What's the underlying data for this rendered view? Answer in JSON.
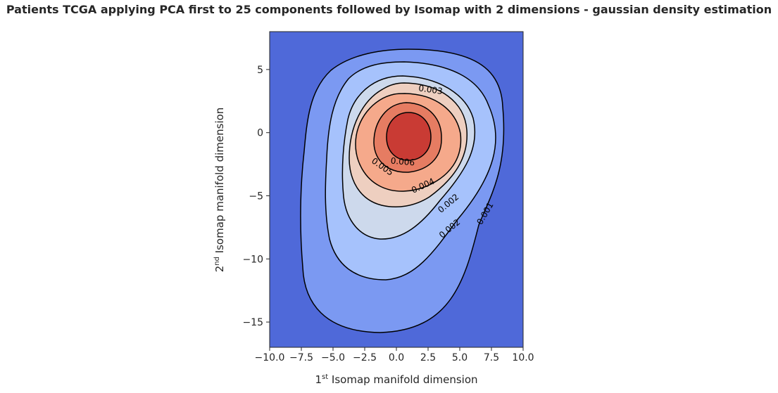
{
  "chart_data": {
    "type": "contour",
    "title": "Patients TCGA applying PCA first to 25 components followed by Isomap with 2 dimensions - gaussian density estimation",
    "xlabel": {
      "ordinal": "1",
      "suffix": "st",
      "text": " Isomap manifold dimension"
    },
    "ylabel": {
      "ordinal": "2",
      "suffix": "nd",
      "text": " Isomap manifold dimension"
    },
    "xlim": [
      -10,
      10
    ],
    "ylim": [
      -17,
      8
    ],
    "xticks": [
      -10,
      -7.5,
      -5,
      -2.5,
      0,
      2.5,
      5,
      7.5,
      10
    ],
    "xtick_labels": [
      "−10.0",
      "−7.5",
      "−5.0",
      "−2.5",
      "0.0",
      "2.5",
      "5.0",
      "7.5",
      "10.0"
    ],
    "yticks": [
      5,
      0,
      -5,
      -10,
      -15
    ],
    "ytick_labels": [
      "5",
      "0",
      "−5",
      "−10",
      "−15"
    ],
    "grid": false,
    "colormap": "coolwarm",
    "density_peak": {
      "x": 1,
      "y": -0.5
    },
    "contour_levels": [
      0.001,
      0.002,
      0.003,
      0.004,
      0.005,
      0.006
    ],
    "contour_labels": [
      {
        "text": "0.003",
        "x": 2.7,
        "y": 3.4
      },
      {
        "text": "0.006",
        "x": 0.5,
        "y": -2.3
      },
      {
        "text": "0.005",
        "x": -1.1,
        "y": -2.7
      },
      {
        "text": "0.004",
        "x": 2.1,
        "y": -4.2
      },
      {
        "text": "0.002",
        "x": 4.1,
        "y": -5.6
      },
      {
        "text": "0.001",
        "x": 7.0,
        "y": -6.4
      },
      {
        "text": "0.002",
        "x": 4.2,
        "y": -7.6
      }
    ],
    "colors": {
      "background": "#4f69d9",
      "band1": "#7b99f2",
      "band2": "#a6c2fc",
      "band3": "#cdd9ec",
      "band4": "#eecfc0",
      "band5": "#f5a98b",
      "band6": "#e67c62",
      "band7": "#c93b34",
      "line": "#000000"
    }
  }
}
